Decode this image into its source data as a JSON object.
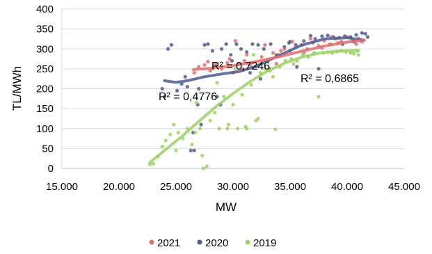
{
  "chart_data": {
    "type": "scatter",
    "title": "",
    "xlabel": "MW",
    "ylabel": "TL/MWh",
    "xlim": [
      15000,
      45000
    ],
    "ylim": [
      0,
      400
    ],
    "x_ticks": [
      15000,
      20000,
      25000,
      30000,
      35000,
      40000,
      45000
    ],
    "x_tick_labels": [
      "15.000",
      "20.000",
      "25.000",
      "30.000",
      "35.000",
      "40.000",
      "45.000"
    ],
    "y_ticks": [
      0,
      50,
      100,
      150,
      200,
      250,
      300,
      350,
      400
    ],
    "y_tick_labels": [
      "0",
      "50",
      "100",
      "150",
      "200",
      "250",
      "300",
      "350",
      "400"
    ],
    "grid": "horizontal",
    "legend_position": "bottom",
    "colors": {
      "2021": "#E36C6C",
      "2020": "#4A5D8F",
      "2019": "#9BD164"
    },
    "series": [
      {
        "name": "2021",
        "trendline_r2": "R² = 0,7246",
        "trendline": [
          [
            26500,
            248
          ],
          [
            28000,
            251
          ],
          [
            30000,
            258
          ],
          [
            32000,
            268
          ],
          [
            34000,
            280
          ],
          [
            36000,
            294
          ],
          [
            38000,
            307
          ],
          [
            40000,
            317
          ],
          [
            41500,
            322
          ]
        ],
        "points": [
          [
            26600,
            240
          ],
          [
            27000,
            255
          ],
          [
            27500,
            260
          ],
          [
            28000,
            245
          ],
          [
            28500,
            262
          ],
          [
            29000,
            250
          ],
          [
            29500,
            265
          ],
          [
            30000,
            240
          ],
          [
            30500,
            262
          ],
          [
            31000,
            270
          ],
          [
            31500,
            260
          ],
          [
            32000,
            255
          ],
          [
            32500,
            280
          ],
          [
            33000,
            270
          ],
          [
            33500,
            290
          ],
          [
            34000,
            285
          ],
          [
            34500,
            300
          ],
          [
            35000,
            295
          ],
          [
            35500,
            305
          ],
          [
            36000,
            310
          ],
          [
            36500,
            300
          ],
          [
            37000,
            315
          ],
          [
            37500,
            308
          ],
          [
            38000,
            320
          ],
          [
            38500,
            312
          ],
          [
            39000,
            325
          ],
          [
            39500,
            318
          ],
          [
            40000,
            330
          ],
          [
            40500,
            322
          ],
          [
            41000,
            326
          ],
          [
            41300,
            318
          ],
          [
            30200,
            320
          ],
          [
            32800,
            310
          ],
          [
            34200,
            295
          ],
          [
            36200,
            290
          ],
          [
            37800,
            302
          ],
          [
            39200,
            315
          ],
          [
            40800,
            312
          ],
          [
            27800,
            268
          ],
          [
            29700,
            275
          ],
          [
            31200,
            285
          ],
          [
            35200,
            318
          ],
          [
            36800,
            325
          ],
          [
            38600,
            330
          ],
          [
            33800,
            263
          ],
          [
            30800,
            250
          ]
        ]
      },
      {
        "name": "2020",
        "trendline_r2": "R² = 0,4776",
        "trendline": [
          [
            24000,
            220
          ],
          [
            25000,
            216
          ],
          [
            26000,
            220
          ],
          [
            27500,
            230
          ],
          [
            29000,
            237
          ],
          [
            30500,
            243
          ],
          [
            32000,
            256
          ],
          [
            34000,
            283
          ],
          [
            36000,
            309
          ],
          [
            38000,
            325
          ],
          [
            40000,
            328
          ],
          [
            41500,
            322
          ]
        ],
        "points": [
          [
            23800,
            200
          ],
          [
            24000,
            180
          ],
          [
            24300,
            300
          ],
          [
            24600,
            310
          ],
          [
            25100,
            195
          ],
          [
            25500,
            212
          ],
          [
            26000,
            205
          ],
          [
            26300,
            45
          ],
          [
            26600,
            45
          ],
          [
            26900,
            160
          ],
          [
            27200,
            110
          ],
          [
            27500,
            310
          ],
          [
            27800,
            312
          ],
          [
            28200,
            295
          ],
          [
            28600,
            180
          ],
          [
            29000,
            300
          ],
          [
            29400,
            312
          ],
          [
            29800,
            285
          ],
          [
            30300,
            312
          ],
          [
            30700,
            300
          ],
          [
            31200,
            292
          ],
          [
            31700,
            312
          ],
          [
            32200,
            310
          ],
          [
            32700,
            300
          ],
          [
            33300,
            312
          ],
          [
            33800,
            285
          ],
          [
            34500,
            305
          ],
          [
            35000,
            318
          ],
          [
            35500,
            310
          ],
          [
            36200,
            320
          ],
          [
            36800,
            333
          ],
          [
            37200,
            325
          ],
          [
            37800,
            332
          ],
          [
            38300,
            334
          ],
          [
            38800,
            330
          ],
          [
            39300,
            328
          ],
          [
            39800,
            332
          ],
          [
            40300,
            330
          ],
          [
            40800,
            335
          ],
          [
            41300,
            340
          ],
          [
            41600,
            338
          ],
          [
            41800,
            330
          ],
          [
            26500,
            90
          ],
          [
            25800,
            230
          ],
          [
            28900,
            160
          ],
          [
            31500,
            240
          ],
          [
            33200,
            250
          ],
          [
            35600,
            255
          ],
          [
            37500,
            250
          ],
          [
            39600,
            312
          ],
          [
            40600,
            318
          ],
          [
            27000,
            200
          ],
          [
            29900,
            270
          ],
          [
            32400,
            225
          ],
          [
            34900,
            315
          ]
        ]
      },
      {
        "name": "2019",
        "trendline_r2": "R² = 0,6865",
        "trendline": [
          [
            22700,
            15
          ],
          [
            24000,
            45
          ],
          [
            25500,
            80
          ],
          [
            27000,
            118
          ],
          [
            28500,
            155
          ],
          [
            30000,
            188
          ],
          [
            31500,
            218
          ],
          [
            33000,
            244
          ],
          [
            34500,
            264
          ],
          [
            36000,
            279
          ],
          [
            37500,
            289
          ],
          [
            39000,
            294
          ],
          [
            40500,
            296
          ],
          [
            41000,
            296
          ]
        ],
        "points": [
          [
            22700,
            10
          ],
          [
            23000,
            12
          ],
          [
            23400,
            30
          ],
          [
            23800,
            55
          ],
          [
            24100,
            70
          ],
          [
            24500,
            85
          ],
          [
            24800,
            110
          ],
          [
            25200,
            90
          ],
          [
            25600,
            75
          ],
          [
            26000,
            100
          ],
          [
            26400,
            60
          ],
          [
            26700,
            90
          ],
          [
            27100,
            100
          ],
          [
            27400,
            0
          ],
          [
            27700,
            5
          ],
          [
            28000,
            120
          ],
          [
            28400,
            140
          ],
          [
            28800,
            100
          ],
          [
            29200,
            180
          ],
          [
            29600,
            110
          ],
          [
            30000,
            160
          ],
          [
            30400,
            100
          ],
          [
            30800,
            185
          ],
          [
            31200,
            100
          ],
          [
            31600,
            210
          ],
          [
            32000,
            120
          ],
          [
            32400,
            240
          ],
          [
            32800,
            250
          ],
          [
            33200,
            245
          ],
          [
            33700,
            98
          ],
          [
            34100,
            255
          ],
          [
            34600,
            270
          ],
          [
            35100,
            275
          ],
          [
            35600,
            270
          ],
          [
            36100,
            285
          ],
          [
            36600,
            280
          ],
          [
            37100,
            290
          ],
          [
            37500,
            180
          ],
          [
            37900,
            290
          ],
          [
            38300,
            292
          ],
          [
            38700,
            290
          ],
          [
            39100,
            293
          ],
          [
            39500,
            295
          ],
          [
            39900,
            292
          ],
          [
            40300,
            290
          ],
          [
            40600,
            288
          ],
          [
            40900,
            295
          ],
          [
            41000,
            285
          ],
          [
            25000,
            45
          ],
          [
            26800,
            165
          ],
          [
            28600,
            215
          ],
          [
            30200,
            250
          ],
          [
            31800,
            285
          ],
          [
            33500,
            230
          ],
          [
            35300,
            262
          ],
          [
            27300,
            32
          ],
          [
            29500,
            100
          ],
          [
            31100,
            105
          ],
          [
            32200,
            125
          ]
        ]
      }
    ]
  }
}
